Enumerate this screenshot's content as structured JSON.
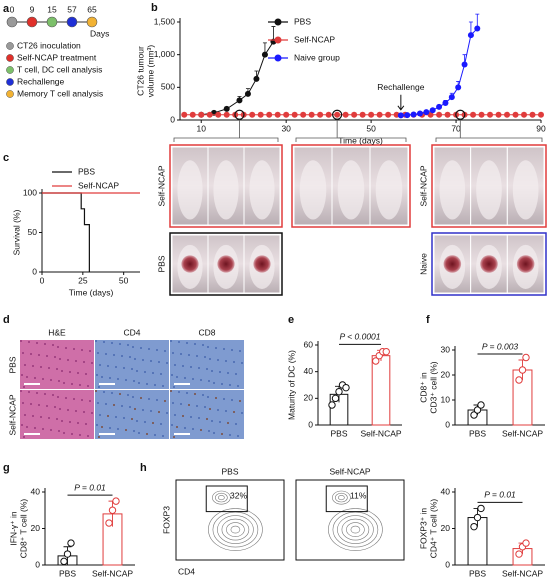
{
  "panel_labels": [
    "a",
    "b",
    "c",
    "d",
    "e",
    "f",
    "g",
    "h"
  ],
  "timeline": {
    "days": [
      "0",
      "9",
      "15",
      "57",
      "65"
    ],
    "colors": [
      "#9a9a9a",
      "#e0302a",
      "#7cc06a",
      "#1f2fd6",
      "#f2b233"
    ],
    "unit": "Days",
    "legend": [
      "CT26 inoculation",
      "Self-NCAP treatment",
      "T cell, DC cell analysis",
      "Rechallenge",
      "Memory T cell analysis"
    ]
  },
  "photos": {
    "self_ncap": "Self-NCAP",
    "pbs": "PBS",
    "naive": "Naive"
  },
  "histology": {
    "columns": [
      "H&E",
      "CD4",
      "CD8"
    ],
    "rows": [
      "PBS",
      "Self-NCAP"
    ]
  },
  "flow": {
    "groups": [
      "PBS",
      "Self-NCAP"
    ],
    "gate_labels": [
      "32%",
      "11%"
    ],
    "ylabel": "FOXP3",
    "xlabel": "CD4"
  },
  "chart_data": [
    {
      "type": "line",
      "xlabel": "Time (days)",
      "ylabel": [
        "CT26 tumour",
        "volume (mm³)"
      ],
      "xlim": [
        5,
        90
      ],
      "ylim": [
        0,
        1500
      ],
      "xticks": [
        10,
        30,
        50,
        70,
        90
      ],
      "yticks": [
        0,
        500,
        {
          "value": 1000,
          "label": "1,000"
        },
        {
          "value": 1500,
          "label": "1,500"
        }
      ],
      "legend": "top",
      "annotation": {
        "text": "Rechallenge",
        "x": 57
      },
      "highlight_x": [
        19,
        42,
        71
      ],
      "series": [
        {
          "name": "PBS",
          "color": "#111111",
          "x": [
            10,
            13,
            16,
            19,
            21,
            23,
            25,
            27
          ],
          "values": [
            80,
            110,
            170,
            300,
            400,
            630,
            1000,
            1200
          ],
          "errors": [
            10,
            20,
            30,
            60,
            80,
            120,
            180,
            230
          ]
        },
        {
          "name": "Self-NCAP",
          "color": "#e03c3c",
          "x": [
            6,
            8,
            10,
            12,
            14,
            16,
            18,
            20,
            22,
            24,
            26,
            28,
            30,
            32,
            34,
            36,
            38,
            40,
            42,
            44,
            46,
            48,
            50,
            52,
            54,
            56,
            58,
            60,
            62,
            64,
            66,
            68,
            70,
            72,
            74,
            76,
            78,
            80,
            82,
            84,
            86,
            88,
            90
          ],
          "values": [
            80,
            80,
            80,
            80,
            80,
            80,
            80,
            80,
            80,
            80,
            80,
            80,
            80,
            80,
            80,
            80,
            80,
            80,
            80,
            80,
            80,
            80,
            80,
            80,
            80,
            80,
            80,
            80,
            80,
            80,
            80,
            80,
            80,
            80,
            80,
            80,
            80,
            80,
            80,
            80,
            80,
            80,
            80
          ]
        },
        {
          "name": "Naive group",
          "color": "#1a1aff",
          "x": [
            57,
            58.5,
            60,
            61.5,
            63,
            64.5,
            66,
            67.5,
            69,
            70.5,
            72,
            73.5,
            75
          ],
          "values": [
            70,
            75,
            85,
            100,
            120,
            150,
            200,
            260,
            350,
            500,
            850,
            1300,
            1400
          ],
          "errors": [
            5,
            5,
            10,
            10,
            15,
            20,
            30,
            40,
            60,
            90,
            150,
            200,
            220
          ]
        }
      ]
    },
    {
      "type": "step",
      "xlabel": "Time (days)",
      "ylabel": [
        "Survival (%)"
      ],
      "xlim": [
        0,
        60
      ],
      "ylim": [
        0,
        100
      ],
      "xticks": [
        0,
        25,
        50
      ],
      "yticks": [
        0,
        50,
        100
      ],
      "legend": "top",
      "series": [
        {
          "name": "PBS",
          "color": "#111111",
          "x": [
            0,
            24,
            26,
            29
          ],
          "values": [
            100,
            80,
            60,
            0
          ]
        },
        {
          "name": "Self-NCAP",
          "color": "#e03c3c",
          "x": [
            0,
            60
          ],
          "values": [
            100,
            100
          ]
        }
      ]
    },
    {
      "type": "bar",
      "categories": [
        "PBS",
        "Self-NCAP"
      ],
      "colors": [
        "#111111",
        "#e03c3c"
      ],
      "ylabel": [
        "Maturity of DC (%)"
      ],
      "ylim": [
        0,
        60
      ],
      "yticks": [
        0,
        20,
        40,
        60
      ],
      "values": [
        23,
        52
      ],
      "errors": [
        6,
        4
      ],
      "points": [
        [
          15,
          20,
          25,
          30,
          28
        ],
        [
          48,
          52,
          55,
          55
        ]
      ],
      "annotation": "P < 0.0001"
    },
    {
      "type": "bar",
      "categories": [
        "PBS",
        "Self-NCAP"
      ],
      "colors": [
        "#111111",
        "#e03c3c"
      ],
      "ylabel": [
        "CD8⁺ in",
        "CD3⁺ cell (%)"
      ],
      "ylim": [
        0,
        30
      ],
      "yticks": [
        0,
        10,
        20,
        30
      ],
      "values": [
        6,
        22
      ],
      "errors": [
        2,
        4
      ],
      "points": [
        [
          4,
          6,
          8
        ],
        [
          18,
          22,
          27
        ]
      ],
      "annotation": "P = 0.003"
    },
    {
      "type": "bar",
      "categories": [
        "PBS",
        "Self-NCAP"
      ],
      "colors": [
        "#111111",
        "#e03c3c"
      ],
      "ylabel": [
        "IFN-γ⁺ in",
        "CD8⁺ T cell (%)"
      ],
      "ylim": [
        0,
        40
      ],
      "yticks": [
        0,
        20,
        40
      ],
      "values": [
        5,
        28
      ],
      "errors": [
        5,
        7
      ],
      "points": [
        [
          2,
          6,
          12
        ],
        [
          23,
          30,
          35
        ]
      ],
      "annotation": "P = 0.01"
    },
    {
      "type": "bar",
      "categories": [
        "PBS",
        "Self-NCAP"
      ],
      "colors": [
        "#111111",
        "#e03c3c"
      ],
      "ylabel": [
        "FOXP3⁺ in",
        "CD4⁺ T cell (%)"
      ],
      "ylim": [
        0,
        40
      ],
      "yticks": [
        0,
        20,
        40
      ],
      "values": [
        26,
        9
      ],
      "errors": [
        5,
        3
      ],
      "points": [
        [
          21,
          26,
          31
        ],
        [
          6,
          10,
          12
        ]
      ],
      "annotation": "P = 0.01"
    }
  ]
}
